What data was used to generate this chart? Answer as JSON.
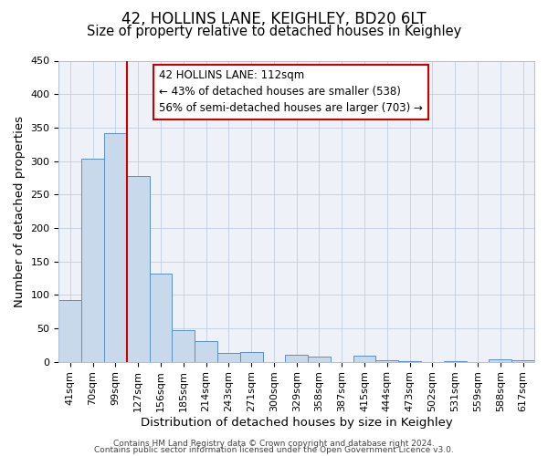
{
  "title": "42, HOLLINS LANE, KEIGHLEY, BD20 6LT",
  "subtitle": "Size of property relative to detached houses in Keighley",
  "xlabel": "Distribution of detached houses by size in Keighley",
  "ylabel": "Number of detached properties",
  "bin_labels": [
    "41sqm",
    "70sqm",
    "99sqm",
    "127sqm",
    "156sqm",
    "185sqm",
    "214sqm",
    "243sqm",
    "271sqm",
    "300sqm",
    "329sqm",
    "358sqm",
    "387sqm",
    "415sqm",
    "444sqm",
    "473sqm",
    "502sqm",
    "531sqm",
    "559sqm",
    "588sqm",
    "617sqm"
  ],
  "bin_values": [
    92,
    303,
    342,
    278,
    132,
    47,
    31,
    13,
    15,
    0,
    11,
    7,
    0,
    9,
    2,
    1,
    0,
    1,
    0,
    3,
    2
  ],
  "bar_color": "#c8d9ec",
  "bar_edge_color": "#5b8fc9",
  "vline_x": 3,
  "vline_color": "#cc0000",
  "ylim": [
    0,
    450
  ],
  "yticks": [
    0,
    50,
    100,
    150,
    200,
    250,
    300,
    350,
    400,
    450
  ],
  "annotation_title": "42 HOLLINS LANE: 112sqm",
  "annotation_line1": "← 43% of detached houses are smaller (538)",
  "annotation_line2": "56% of semi-detached houses are larger (703) →",
  "annotation_box_color": "#cc0000",
  "footer_line1": "Contains HM Land Registry data © Crown copyright and database right 2024.",
  "footer_line2": "Contains public sector information licensed under the Open Government Licence v3.0.",
  "bg_color": "#eef2f8",
  "title_fontsize": 12,
  "subtitle_fontsize": 10.5,
  "axis_label_fontsize": 9.5,
  "tick_fontsize": 8,
  "footer_fontsize": 6.5
}
